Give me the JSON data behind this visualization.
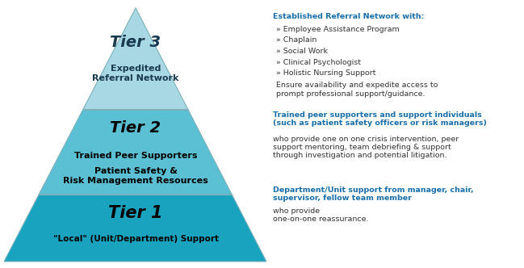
{
  "bg_color": "#ffffff",
  "tier_colors": [
    "#1aa3bf",
    "#5cc0d4",
    "#a8d8e4"
  ],
  "tier1_label1": "Tier 1",
  "tier1_label2": "\"Local\" (Unit/Department) Support",
  "tier2_label1": "Tier 2",
  "tier2_label2": "Trained Peer Supporters",
  "tier2_label3": "Patient Safety &\nRisk Management Resources",
  "tier3_label1": "Tier 3",
  "tier3_label2": "Expedited\nReferral Network",
  "tier1_note_bold": "Department/Unit support from manager, chair,\nsupervisor, fellow team member",
  "tier1_note_normal": " who provide\none-on-one reassurance.",
  "tier2_note_bold": "Trained peer supporters and support individuals\n(such as patient safety officers or risk managers)",
  "tier2_note_normal": "who provide one on one crisis intervention, peer\nsupport mentoring, team debriefing & support\nthrough investigation and potential litigation.",
  "tier3_note_bold": "Established Referral Network with:",
  "tier3_note_bullets": [
    "» Employee Assistance Program",
    "» Chaplain",
    "» Social Work",
    "» Clinical Psychologist",
    "» Holistic Nursing Support"
  ],
  "tier3_note_normal": "Ensure availability and expedite access to\nprompt professional support/guidance.",
  "note_color_bold": "#1a6fa8",
  "note_color_normal": "#333333",
  "outline_color": "#7ab0bb",
  "tier1_text_color": "#000000",
  "tier2_text_color": "#000000",
  "tier3_text_color": "#1a3a50",
  "fig_width": 6.49,
  "fig_height": 3.32,
  "dpi": 100
}
